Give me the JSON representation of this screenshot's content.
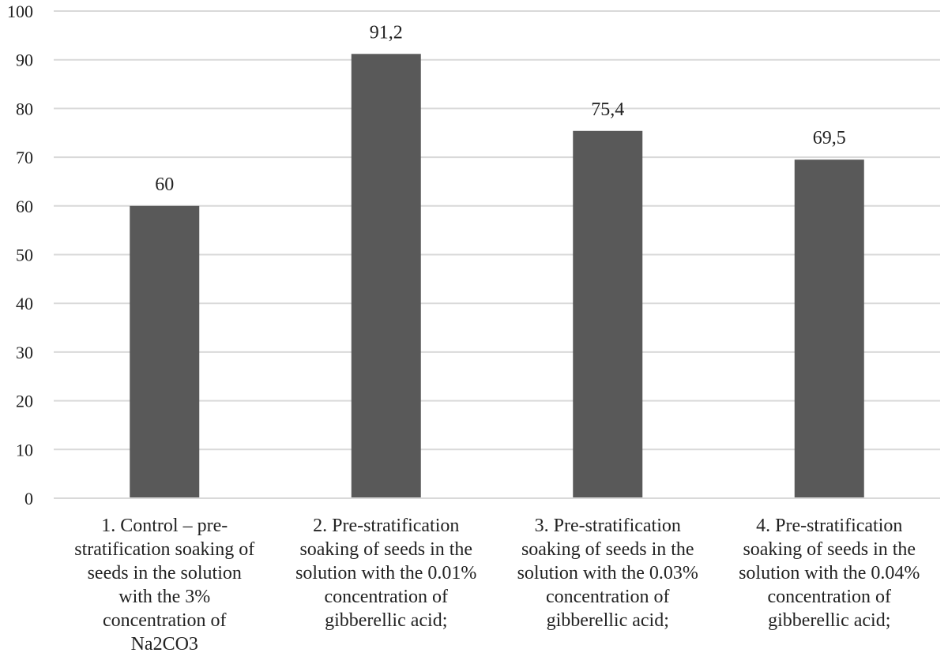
{
  "chart_data": {
    "type": "bar",
    "title": "",
    "xlabel": "",
    "ylabel": "",
    "ylim": [
      0,
      100
    ],
    "y_ticks": [
      0,
      10,
      20,
      30,
      40,
      50,
      60,
      70,
      80,
      90,
      100
    ],
    "grid": true,
    "legend": "none",
    "bar_color": "#595959",
    "grid_color": "#d9d9d9",
    "categories": [
      [
        "1. Control – pre-",
        "stratification soaking of",
        "seeds in the solution",
        "with the 3%",
        "concentration of",
        "Na2CO3"
      ],
      [
        "2. Pre-stratification",
        "soaking of seeds in the",
        "solution with the 0.01%",
        "concentration of",
        "gibberellic acid;"
      ],
      [
        "3. Pre-stratification",
        "soaking of seeds in the",
        "solution with the 0.03%",
        "concentration of",
        "gibberellic acid;"
      ],
      [
        "4. Pre-stratification",
        "soaking of seeds in the",
        "solution with the 0.04%",
        "concentration of",
        "gibberellic acid;"
      ]
    ],
    "values": [
      60,
      91.2,
      75.4,
      69.5
    ],
    "value_labels": [
      "60",
      "91,2",
      "75,4",
      "69,5"
    ]
  }
}
